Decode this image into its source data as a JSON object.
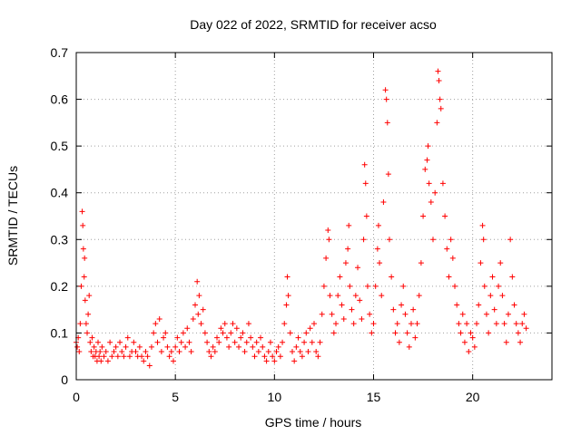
{
  "chart_data": {
    "type": "scatter",
    "title": "Day 022 of 2022, SRMTID for receiver acso",
    "xlabel": "GPS time / hours",
    "ylabel": "SRMTID / TECUs",
    "xlim": [
      0,
      24
    ],
    "ylim": [
      0,
      0.7
    ],
    "x_ticks": [
      0,
      5,
      10,
      15,
      20
    ],
    "x_tick_labels": [
      "0",
      "5",
      "10",
      "15",
      "20"
    ],
    "y_ticks": [
      0,
      0.1,
      0.2,
      0.3,
      0.4,
      0.5,
      0.6,
      0.7
    ],
    "y_tick_labels": [
      "0",
      "0.1",
      "0.2",
      "0.3",
      "0.4",
      "0.5",
      "0.6",
      "0.7"
    ],
    "grid": true,
    "marker": "plus",
    "series": [
      {
        "name": "SRMTID",
        "color": "#ff0000",
        "points": [
          [
            0.0,
            0.08
          ],
          [
            0.05,
            0.07
          ],
          [
            0.1,
            0.09
          ],
          [
            0.15,
            0.06
          ],
          [
            0.2,
            0.12
          ],
          [
            0.25,
            0.2
          ],
          [
            0.3,
            0.36
          ],
          [
            0.33,
            0.33
          ],
          [
            0.36,
            0.28
          ],
          [
            0.4,
            0.22
          ],
          [
            0.42,
            0.26
          ],
          [
            0.45,
            0.17
          ],
          [
            0.5,
            0.12
          ],
          [
            0.55,
            0.1
          ],
          [
            0.6,
            0.14
          ],
          [
            0.65,
            0.18
          ],
          [
            0.7,
            0.08
          ],
          [
            0.75,
            0.06
          ],
          [
            0.8,
            0.09
          ],
          [
            0.85,
            0.05
          ],
          [
            0.9,
            0.07
          ],
          [
            0.95,
            0.05
          ],
          [
            1.0,
            0.06
          ],
          [
            1.05,
            0.04
          ],
          [
            1.1,
            0.08
          ],
          [
            1.15,
            0.05
          ],
          [
            1.2,
            0.06
          ],
          [
            1.25,
            0.04
          ],
          [
            1.3,
            0.07
          ],
          [
            1.4,
            0.05
          ],
          [
            1.5,
            0.06
          ],
          [
            1.6,
            0.04
          ],
          [
            1.7,
            0.08
          ],
          [
            1.8,
            0.05
          ],
          [
            1.9,
            0.06
          ],
          [
            2.0,
            0.07
          ],
          [
            2.1,
            0.05
          ],
          [
            2.2,
            0.08
          ],
          [
            2.3,
            0.06
          ],
          [
            2.4,
            0.05
          ],
          [
            2.5,
            0.07
          ],
          [
            2.6,
            0.09
          ],
          [
            2.7,
            0.05
          ],
          [
            2.8,
            0.06
          ],
          [
            2.9,
            0.08
          ],
          [
            3.0,
            0.06
          ],
          [
            3.1,
            0.05
          ],
          [
            3.2,
            0.07
          ],
          [
            3.3,
            0.05
          ],
          [
            3.4,
            0.04
          ],
          [
            3.5,
            0.06
          ],
          [
            3.6,
            0.05
          ],
          [
            3.7,
            0.03
          ],
          [
            3.8,
            0.07
          ],
          [
            3.9,
            0.1
          ],
          [
            4.0,
            0.12
          ],
          [
            4.1,
            0.08
          ],
          [
            4.2,
            0.13
          ],
          [
            4.3,
            0.06
          ],
          [
            4.4,
            0.09
          ],
          [
            4.5,
            0.1
          ],
          [
            4.6,
            0.07
          ],
          [
            4.7,
            0.05
          ],
          [
            4.8,
            0.06
          ],
          [
            4.9,
            0.04
          ],
          [
            5.0,
            0.07
          ],
          [
            5.1,
            0.09
          ],
          [
            5.2,
            0.06
          ],
          [
            5.3,
            0.08
          ],
          [
            5.4,
            0.1
          ],
          [
            5.5,
            0.07
          ],
          [
            5.6,
            0.11
          ],
          [
            5.7,
            0.08
          ],
          [
            5.8,
            0.06
          ],
          [
            5.9,
            0.13
          ],
          [
            6.0,
            0.16
          ],
          [
            6.1,
            0.21
          ],
          [
            6.15,
            0.14
          ],
          [
            6.2,
            0.18
          ],
          [
            6.3,
            0.12
          ],
          [
            6.4,
            0.15
          ],
          [
            6.5,
            0.1
          ],
          [
            6.6,
            0.08
          ],
          [
            6.7,
            0.06
          ],
          [
            6.8,
            0.05
          ],
          [
            6.9,
            0.07
          ],
          [
            7.0,
            0.06
          ],
          [
            7.1,
            0.09
          ],
          [
            7.2,
            0.08
          ],
          [
            7.3,
            0.11
          ],
          [
            7.4,
            0.1
          ],
          [
            7.5,
            0.12
          ],
          [
            7.6,
            0.09
          ],
          [
            7.7,
            0.07
          ],
          [
            7.8,
            0.1
          ],
          [
            7.9,
            0.12
          ],
          [
            8.0,
            0.08
          ],
          [
            8.1,
            0.11
          ],
          [
            8.2,
            0.07
          ],
          [
            8.3,
            0.09
          ],
          [
            8.4,
            0.1
          ],
          [
            8.5,
            0.06
          ],
          [
            8.6,
            0.08
          ],
          [
            8.7,
            0.12
          ],
          [
            8.8,
            0.09
          ],
          [
            8.9,
            0.07
          ],
          [
            9.0,
            0.05
          ],
          [
            9.1,
            0.08
          ],
          [
            9.2,
            0.06
          ],
          [
            9.3,
            0.09
          ],
          [
            9.4,
            0.07
          ],
          [
            9.5,
            0.05
          ],
          [
            9.6,
            0.04
          ],
          [
            9.7,
            0.06
          ],
          [
            9.8,
            0.08
          ],
          [
            9.9,
            0.05
          ],
          [
            10.0,
            0.04
          ],
          [
            10.1,
            0.06
          ],
          [
            10.2,
            0.07
          ],
          [
            10.3,
            0.05
          ],
          [
            10.4,
            0.08
          ],
          [
            10.5,
            0.12
          ],
          [
            10.6,
            0.16
          ],
          [
            10.65,
            0.22
          ],
          [
            10.7,
            0.18
          ],
          [
            10.8,
            0.1
          ],
          [
            10.9,
            0.06
          ],
          [
            11.0,
            0.04
          ],
          [
            11.1,
            0.07
          ],
          [
            11.2,
            0.09
          ],
          [
            11.3,
            0.06
          ],
          [
            11.4,
            0.05
          ],
          [
            11.5,
            0.08
          ],
          [
            11.6,
            0.1
          ],
          [
            11.7,
            0.06
          ],
          [
            11.8,
            0.11
          ],
          [
            11.9,
            0.08
          ],
          [
            12.0,
            0.12
          ],
          [
            12.1,
            0.06
          ],
          [
            12.2,
            0.05
          ],
          [
            12.3,
            0.08
          ],
          [
            12.4,
            0.14
          ],
          [
            12.5,
            0.2
          ],
          [
            12.6,
            0.26
          ],
          [
            12.7,
            0.32
          ],
          [
            12.75,
            0.3
          ],
          [
            12.8,
            0.18
          ],
          [
            12.9,
            0.14
          ],
          [
            13.0,
            0.1
          ],
          [
            13.1,
            0.12
          ],
          [
            13.2,
            0.18
          ],
          [
            13.3,
            0.22
          ],
          [
            13.4,
            0.16
          ],
          [
            13.5,
            0.13
          ],
          [
            13.6,
            0.25
          ],
          [
            13.7,
            0.28
          ],
          [
            13.75,
            0.33
          ],
          [
            13.8,
            0.2
          ],
          [
            13.9,
            0.15
          ],
          [
            14.0,
            0.12
          ],
          [
            14.1,
            0.18
          ],
          [
            14.2,
            0.24
          ],
          [
            14.3,
            0.17
          ],
          [
            14.4,
            0.13
          ],
          [
            14.5,
            0.3
          ],
          [
            14.55,
            0.46
          ],
          [
            14.6,
            0.42
          ],
          [
            14.65,
            0.35
          ],
          [
            14.7,
            0.2
          ],
          [
            14.8,
            0.14
          ],
          [
            14.9,
            0.1
          ],
          [
            15.0,
            0.12
          ],
          [
            15.1,
            0.2
          ],
          [
            15.2,
            0.28
          ],
          [
            15.25,
            0.33
          ],
          [
            15.3,
            0.25
          ],
          [
            15.4,
            0.18
          ],
          [
            15.5,
            0.38
          ],
          [
            15.6,
            0.62
          ],
          [
            15.65,
            0.6
          ],
          [
            15.7,
            0.55
          ],
          [
            15.75,
            0.44
          ],
          [
            15.8,
            0.3
          ],
          [
            15.9,
            0.22
          ],
          [
            16.0,
            0.15
          ],
          [
            16.1,
            0.1
          ],
          [
            16.2,
            0.12
          ],
          [
            16.3,
            0.08
          ],
          [
            16.4,
            0.16
          ],
          [
            16.5,
            0.2
          ],
          [
            16.6,
            0.14
          ],
          [
            16.7,
            0.1
          ],
          [
            16.8,
            0.07
          ],
          [
            16.9,
            0.12
          ],
          [
            17.0,
            0.15
          ],
          [
            17.1,
            0.09
          ],
          [
            17.2,
            0.12
          ],
          [
            17.3,
            0.18
          ],
          [
            17.4,
            0.25
          ],
          [
            17.5,
            0.35
          ],
          [
            17.6,
            0.45
          ],
          [
            17.7,
            0.47
          ],
          [
            17.75,
            0.5
          ],
          [
            17.8,
            0.42
          ],
          [
            17.9,
            0.38
          ],
          [
            18.0,
            0.3
          ],
          [
            18.1,
            0.4
          ],
          [
            18.2,
            0.55
          ],
          [
            18.25,
            0.66
          ],
          [
            18.3,
            0.64
          ],
          [
            18.35,
            0.6
          ],
          [
            18.4,
            0.58
          ],
          [
            18.5,
            0.42
          ],
          [
            18.6,
            0.35
          ],
          [
            18.7,
            0.28
          ],
          [
            18.8,
            0.22
          ],
          [
            18.9,
            0.3
          ],
          [
            19.0,
            0.26
          ],
          [
            19.1,
            0.2
          ],
          [
            19.2,
            0.16
          ],
          [
            19.3,
            0.12
          ],
          [
            19.4,
            0.1
          ],
          [
            19.5,
            0.14
          ],
          [
            19.6,
            0.08
          ],
          [
            19.7,
            0.12
          ],
          [
            19.8,
            0.06
          ],
          [
            19.9,
            0.1
          ],
          [
            20.0,
            0.09
          ],
          [
            20.1,
            0.07
          ],
          [
            20.2,
            0.12
          ],
          [
            20.3,
            0.16
          ],
          [
            20.4,
            0.25
          ],
          [
            20.5,
            0.33
          ],
          [
            20.55,
            0.3
          ],
          [
            20.6,
            0.2
          ],
          [
            20.7,
            0.14
          ],
          [
            20.8,
            0.1
          ],
          [
            20.9,
            0.18
          ],
          [
            21.0,
            0.22
          ],
          [
            21.1,
            0.15
          ],
          [
            21.2,
            0.12
          ],
          [
            21.3,
            0.2
          ],
          [
            21.4,
            0.25
          ],
          [
            21.5,
            0.18
          ],
          [
            21.6,
            0.12
          ],
          [
            21.7,
            0.08
          ],
          [
            21.8,
            0.14
          ],
          [
            21.9,
            0.3
          ],
          [
            22.0,
            0.22
          ],
          [
            22.1,
            0.16
          ],
          [
            22.2,
            0.12
          ],
          [
            22.3,
            0.1
          ],
          [
            22.4,
            0.08
          ],
          [
            22.5,
            0.12
          ],
          [
            22.6,
            0.14
          ],
          [
            22.7,
            0.11
          ]
        ]
      }
    ]
  }
}
